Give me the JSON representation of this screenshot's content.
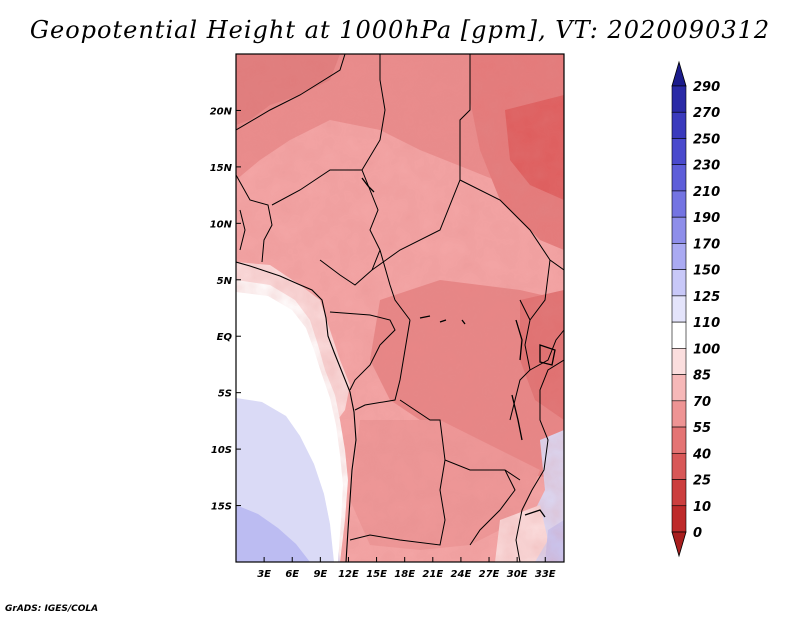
{
  "title": "Geopotential Height at 1000hPa [gpm], VT: 2020090312",
  "credit": "GrADS: IGES/COLA",
  "map": {
    "lon_range": [
      0,
      35
    ],
    "lat_range": [
      -20,
      25
    ],
    "lon_ticks": [
      "3E",
      "6E",
      "9E",
      "12E",
      "15E",
      "18E",
      "21E",
      "24E",
      "27E",
      "30E",
      "33E"
    ],
    "lat_ticks": [
      "20N",
      "15N",
      "10N",
      "5N",
      "EQ",
      "5S",
      "10S",
      "15S"
    ]
  },
  "colorbar": {
    "labels": [
      "290",
      "270",
      "250",
      "230",
      "210",
      "190",
      "170",
      "150",
      "125",
      "110",
      "100",
      "85",
      "70",
      "55",
      "40",
      "25",
      "10",
      "0"
    ],
    "colors": [
      "#1c1c8c",
      "#2a2aa6",
      "#3a3abd",
      "#4a4acd",
      "#5e5ed9",
      "#7474e2",
      "#8e8eea",
      "#aaaaf2",
      "#c8c8f8",
      "#e4e4fb",
      "#ffffff",
      "#fbdede",
      "#f6b8b8",
      "#ee9494",
      "#e47474",
      "#d85858",
      "#cc3e3e",
      "#be2a2a",
      "#a81e1e"
    ]
  }
}
